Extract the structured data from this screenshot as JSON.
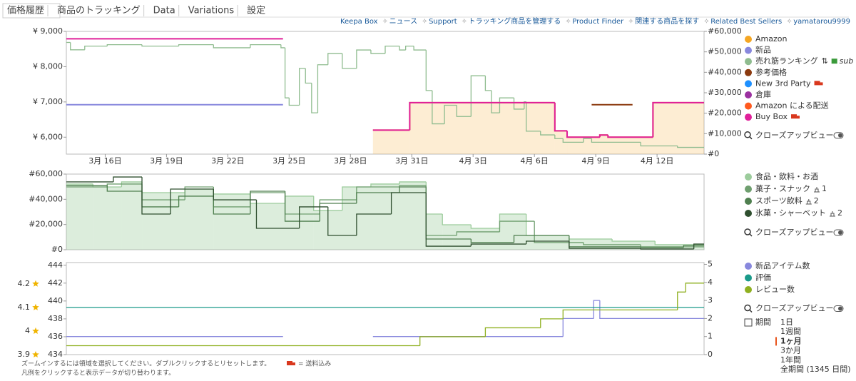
{
  "tabs": [
    "価格履歴",
    "商品のトラッキング",
    "Data",
    "Variations",
    "設定"
  ],
  "nav": [
    "Keepa Box",
    "ニュース",
    "Support",
    "トラッキング商品を管理する",
    "Product Finder",
    "関連する商品を探す",
    "Related Best Sellers",
    "yamatarou9999"
  ],
  "closeup": "クローズアップビュー",
  "sub": "sub",
  "range": {
    "label": "期間",
    "options": [
      "1日",
      "1週間",
      "1ヶ月",
      "3か月",
      "1年間",
      "全期間 (1345 日間)"
    ],
    "selected": 2
  },
  "notes": {
    "zoom": "ズームインするには領域を選択してください。ダブルクリックするとリセットします。",
    "shipping": "= 送料込み",
    "legend": "凡例をクリックすると表示データが切り替わります。"
  },
  "chart_data": [
    {
      "type": "line",
      "xlim": [
        14.1,
        45.3
      ],
      "xticks": [
        {
          "value": 16,
          "label": "3月 16日"
        },
        {
          "value": 19,
          "label": "3月 19日"
        },
        {
          "value": 22,
          "label": "3月 22日"
        },
        {
          "value": 25,
          "label": "3月 25日"
        },
        {
          "value": 28,
          "label": "3月 28日"
        },
        {
          "value": 31,
          "label": "3月 31日"
        },
        {
          "value": 34,
          "label": "4月 3日"
        },
        {
          "value": 37,
          "label": "4月 6日"
        },
        {
          "value": 40,
          "label": "4月 9日"
        },
        {
          "value": 43,
          "label": "4月 12日"
        }
      ],
      "ylim": [
        5520,
        9000
      ],
      "yticks": [
        {
          "value": 6000,
          "label": "¥ 6,000"
        },
        {
          "value": 7000,
          "label": "¥ 7,000"
        },
        {
          "value": 8000,
          "label": "¥ 8,000"
        },
        {
          "value": 9000,
          "label": "¥ 9,000"
        }
      ],
      "y2lim": [
        0,
        60000
      ],
      "y2ticks": [
        {
          "value": 0,
          "label": "#0"
        },
        {
          "value": 10000,
          "label": "#10,000"
        },
        {
          "value": 20000,
          "label": "#20,000"
        },
        {
          "value": 30000,
          "label": "#30,000"
        },
        {
          "value": 40000,
          "label": "#40,000"
        },
        {
          "value": 50000,
          "label": "#50,000"
        },
        {
          "value": 60000,
          "label": "#60,000"
        }
      ],
      "series": [
        {
          "name": "Amazon",
          "color": "#f5a623",
          "fill": true,
          "x": [
            29.1,
            30.9,
            38.0,
            38.6,
            40.2,
            40.6,
            42.8
          ],
          "values": [
            6200,
            6980,
            6180,
            6000,
            6060,
            6000,
            6980
          ]
        },
        {
          "name": "新品",
          "color": "#8888dd",
          "x": [
            14.1,
            24.7
          ],
          "values": [
            6920,
            null
          ]
        },
        {
          "name": "売れ筋ランキング",
          "color": "#8fbc8f",
          "axis": "y2",
          "x": [
            14.1,
            14.3,
            15.0,
            16.1,
            17.8,
            19.6,
            21.3,
            23.1,
            24.6,
            24.8,
            25.0,
            25.5,
            25.8,
            26.1,
            26.4,
            26.9,
            27.6,
            28.3,
            29.0,
            29.7,
            30.4,
            30.7,
            31.1,
            31.7,
            32.0,
            32.6,
            33.2,
            33.9,
            34.6,
            34.9,
            35.3,
            36.0,
            36.5,
            36.6,
            37.3,
            38.0,
            38.4,
            39.4,
            39.8,
            42.2,
            44.0
          ],
          "values": [
            54600,
            51000,
            52800,
            53500,
            52800,
            53500,
            52000,
            53500,
            52000,
            27500,
            23900,
            41900,
            34700,
            20200,
            43700,
            49200,
            41900,
            50900,
            49200,
            52800,
            50900,
            52800,
            50900,
            31100,
            14800,
            23900,
            18400,
            38300,
            31100,
            20200,
            27500,
            22000,
            25600,
            11200,
            9400,
            7600,
            5800,
            7600,
            5800,
            4000,
            3300
          ]
        },
        {
          "name": "参考価格",
          "color": "#8b3a0f",
          "x": [
            39.8,
            41.8
          ],
          "values": [
            6920,
            null
          ]
        },
        {
          "name": "New 3rd Party",
          "color": "#1e90ff",
          "x": [],
          "values": []
        },
        {
          "name": "倉庫",
          "color": "#9b30a0",
          "x": [],
          "values": []
        },
        {
          "name": "Amazon による配送",
          "color": "#ff5a1f",
          "x": [],
          "values": []
        },
        {
          "name": "Buy Box",
          "color": "#e0209a",
          "x": [
            14.1,
            24.7,
            29.1,
            30.9,
            38.0,
            38.6,
            40.2,
            40.6,
            42.8
          ],
          "values": [
            8790,
            null,
            6200,
            6980,
            6180,
            6000,
            6060,
            6000,
            6980
          ]
        }
      ]
    },
    {
      "type": "line",
      "xlim": [
        14.1,
        45.3
      ],
      "ylim": [
        0,
        60000
      ],
      "yticks": [
        {
          "value": 0,
          "label": "#0"
        },
        {
          "value": 20000,
          "label": "#20,000"
        },
        {
          "value": 40000,
          "label": "#40,000"
        },
        {
          "value": 60000,
          "label": "#60,000"
        }
      ],
      "series": [
        {
          "name": "食品・飲料・お酒",
          "color": "#9ccc9c",
          "fill": true,
          "x": [
            14.1,
            15.4,
            16.8,
            17.8,
            19.9,
            21.3,
            23.1,
            24.8,
            26.2,
            27.6,
            29.0,
            30.4,
            31.7,
            32.5,
            33.9,
            35.3,
            36.6,
            38.7,
            40.8,
            42.9
          ],
          "values": [
            52100,
            49800,
            53800,
            45300,
            48100,
            44200,
            36800,
            42500,
            31100,
            49800,
            52100,
            53800,
            28300,
            19800,
            17000,
            28300,
            11300,
            8500,
            6800,
            4000
          ]
        },
        {
          "name": "菓子・スナック",
          "note": "1",
          "color": "#6f9f6f",
          "x": [
            14.1,
            16.1,
            17.8,
            19.9,
            21.3,
            23.1,
            24.8,
            26.5,
            28.3,
            30.4,
            31.7,
            33.2,
            35.3,
            37.0,
            39.4,
            42.2
          ],
          "values": [
            49800,
            52100,
            39600,
            49800,
            34000,
            45300,
            28300,
            39600,
            49800,
            50900,
            11300,
            14200,
            22600,
            5700,
            4000,
            2300
          ]
        },
        {
          "name": "スポーツ飲料",
          "note": "2",
          "color": "#4f7f4f",
          "x": [
            14.1,
            16.1,
            17.8,
            19.6,
            21.3,
            23.1,
            24.8,
            26.5,
            28.3,
            30.4,
            31.7,
            33.9,
            36.0,
            38.7,
            42.2,
            44.3
          ],
          "values": [
            50900,
            46400,
            34000,
            42500,
            28300,
            46400,
            22600,
            36800,
            45300,
            49800,
            8500,
            5700,
            11300,
            2300,
            1700,
            3400
          ]
        },
        {
          "name": "氷菓・シャーベット",
          "note": "2",
          "color": "#2f4f2f",
          "x": [
            14.1,
            16.4,
            17.8,
            19.2,
            21.3,
            23.4,
            25.5,
            26.9,
            28.3,
            30.0,
            31.7,
            33.9,
            36.6,
            38.7,
            42.2,
            44.8
          ],
          "values": [
            53800,
            57700,
            28300,
            48100,
            39600,
            17000,
            34000,
            11300,
            28300,
            45300,
            2800,
            4500,
            6800,
            1100,
            600,
            4500
          ]
        }
      ]
    },
    {
      "type": "line",
      "xlim": [
        14.1,
        45.3
      ],
      "ylim": [
        434,
        444.3
      ],
      "yticks": [
        434,
        436,
        438,
        440,
        442,
        444
      ],
      "y2lim": [
        0,
        5.1
      ],
      "y2ticks": [
        0,
        1,
        2,
        3,
        4,
        5
      ],
      "y3lim": [
        3.9,
        4.29
      ],
      "y3ticks": [
        3.9,
        4.0,
        4.1,
        4.2
      ],
      "series": [
        {
          "name": "新品アイテム数",
          "color": "#8888dd",
          "axis": "y2",
          "x": [
            14.1,
            24.7,
            29.1,
            38.4,
            39.9,
            40.2
          ],
          "values": [
            1,
            null,
            1,
            2,
            3,
            2
          ]
        },
        {
          "name": "評価",
          "color": "#1a9a8a",
          "axis": "y3",
          "x": [
            14.1
          ],
          "values": [
            4.1
          ]
        },
        {
          "name": "レビュー数",
          "color": "#8fb020",
          "x": [
            14.1,
            31.4,
            34.6,
            37.3,
            38.4,
            44.0,
            44.4
          ],
          "values": [
            435,
            436,
            437,
            438,
            439,
            441,
            442
          ]
        }
      ]
    }
  ]
}
